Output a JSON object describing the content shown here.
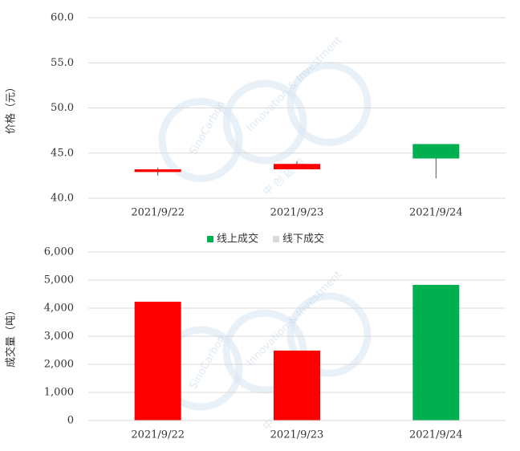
{
  "watermark": {
    "en1": "SinoCarbon",
    "en2": "Innovation & Investment",
    "cn": "中 创 碳 投"
  },
  "chart_data": [
    {
      "type": "candlestick",
      "y_label": "价格（元）",
      "categories": [
        "2021/9/22",
        "2021/9/23",
        "2021/9/24"
      ],
      "open": [
        42.9,
        43.2,
        46.0
      ],
      "high": [
        43.4,
        44.1,
        46.0
      ],
      "low": [
        42.5,
        43.2,
        42.2
      ],
      "close": [
        43.2,
        43.8,
        44.4
      ],
      "up_color": "#ff0000",
      "down_color": "#00b050",
      "ylim": [
        40,
        60
      ],
      "yticks": [
        {
          "value": 40,
          "label": "40.0"
        },
        {
          "value": 45,
          "label": "45.0"
        },
        {
          "value": 50,
          "label": "50.0"
        },
        {
          "value": 55,
          "label": "55.0"
        },
        {
          "value": 60,
          "label": "60.0"
        }
      ],
      "grid": true
    },
    {
      "type": "bar",
      "y_label": "成交量（吨）",
      "categories": [
        "2021/9/22",
        "2021/9/23",
        "2021/9/24"
      ],
      "series": [
        {
          "name": "线上成交",
          "color": "#00b050",
          "colors": [
            "#ff0000",
            "#ff0000",
            "#00b050"
          ],
          "values": [
            4230,
            2490,
            4830
          ]
        },
        {
          "name": "线下成交",
          "color": "#d9d9d9",
          "values": [
            null,
            null,
            null
          ]
        }
      ],
      "legend": "top",
      "ylim": [
        0,
        6000
      ],
      "yticks": [
        0,
        {
          "value": 1000,
          "label": "1,000"
        },
        {
          "value": 2000,
          "label": "2,000"
        },
        {
          "value": 3000,
          "label": "3,000"
        },
        {
          "value": 4000,
          "label": "4,000"
        },
        {
          "value": 5000,
          "label": "5,000"
        },
        {
          "value": 6000,
          "label": "6,000"
        }
      ],
      "grid": true
    }
  ]
}
